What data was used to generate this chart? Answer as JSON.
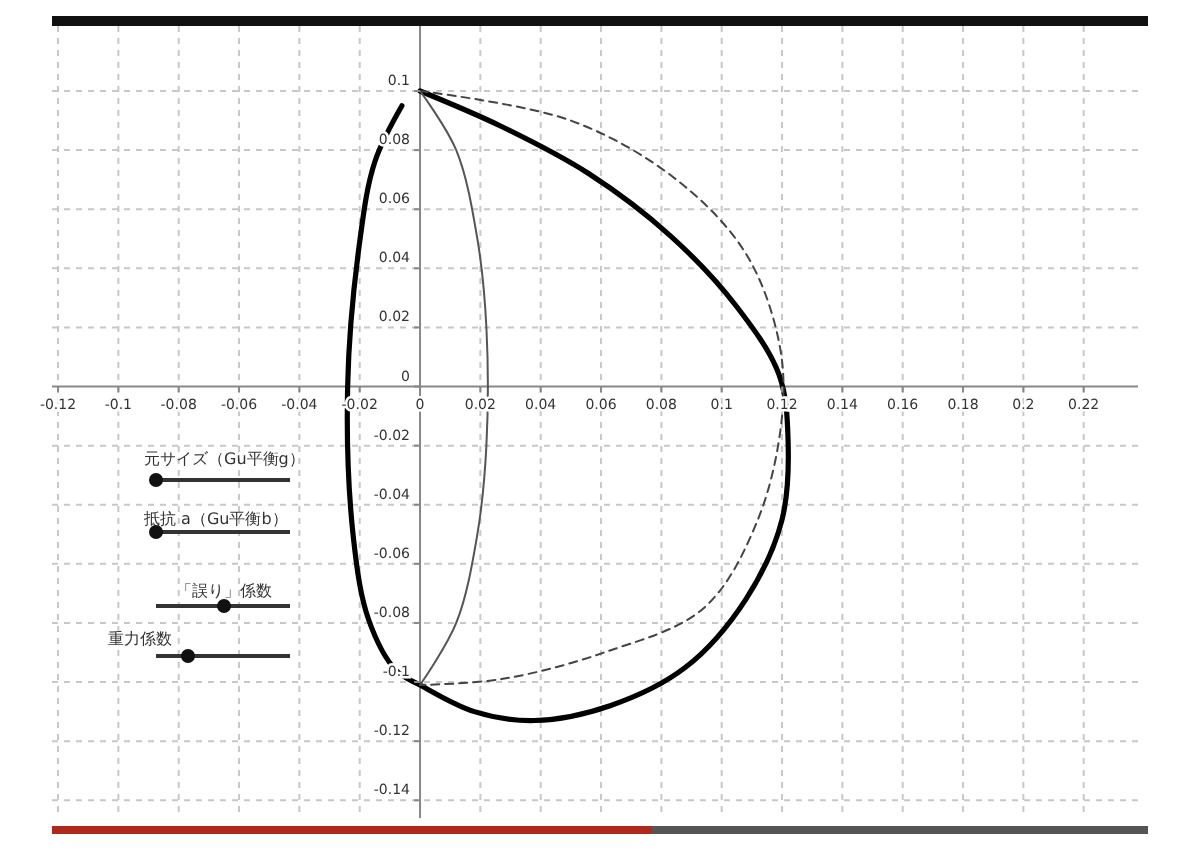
{
  "chart_data": {
    "type": "line",
    "xlim": [
      -0.122,
      0.238
    ],
    "ylim": [
      -0.146,
      0.122
    ],
    "xticks": [
      -0.12,
      -0.1,
      -0.08,
      -0.06,
      -0.04,
      -0.02,
      0,
      0.02,
      0.04,
      0.06,
      0.08,
      0.1,
      0.12,
      0.14,
      0.16,
      0.18,
      0.2,
      0.22
    ],
    "yticks": [
      -0.14,
      -0.12,
      -0.1,
      -0.08,
      -0.06,
      -0.04,
      -0.02,
      0,
      0.02,
      0.04,
      0.06,
      0.08,
      0.1
    ],
    "grid": true,
    "series": [
      {
        "color": "#000000",
        "line_style": "solid",
        "x": [
          0,
          0.027,
          0.056,
          0.083,
          0.105,
          0.119,
          0.122,
          0.12,
          0.108,
          0.088,
          0.063,
          0.038,
          0.018,
          0,
          -0.008,
          -0.017,
          -0.022,
          -0.024,
          -0.02,
          -0.015,
          -0.006
        ],
        "values": [
          0.1,
          0.088,
          0.072,
          0.051,
          0.027,
          0.004,
          -0.018,
          -0.045,
          -0.072,
          -0.095,
          -0.108,
          -0.113,
          -0.11,
          -0.101,
          -0.096,
          -0.079,
          -0.052,
          0,
          0.049,
          0.076,
          0.095
        ]
      },
      {
        "color": "#555555",
        "line_style": "solid",
        "x": [
          0,
          0.012,
          0.019,
          0.022,
          0.022,
          0.019,
          0.012,
          0
        ],
        "values": [
          0.1,
          0.08,
          0.05,
          0.02,
          -0.02,
          -0.05,
          -0.08,
          -0.101
        ]
      },
      {
        "color": "#444444",
        "line_style": "dashed",
        "x": [
          0,
          0.05,
          0.085,
          0.108,
          0.119,
          0.12,
          0.112,
          0.094,
          0.061,
          0.027,
          0
        ],
        "values": [
          0.1,
          0.09,
          0.07,
          0.045,
          0.015,
          -0.01,
          -0.045,
          -0.075,
          -0.09,
          -0.099,
          -0.101
        ]
      }
    ],
    "annotations": [
      "元サイズ（Gu平衡g）",
      "抵抗 a（Gu平衡b）",
      "「誤り」係数",
      "重力係数"
    ]
  }
}
